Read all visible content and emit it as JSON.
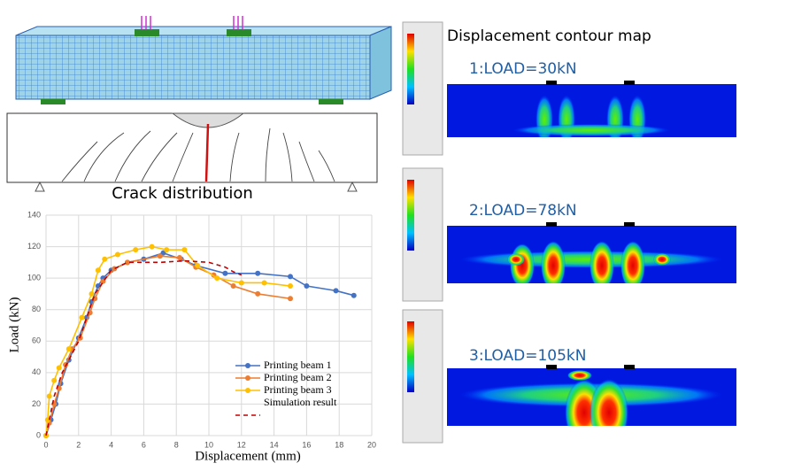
{
  "chart_data": {
    "type": "line",
    "xlabel": "Displacement (mm)",
    "ylabel": "Load (kN)",
    "xlim": [
      0,
      20
    ],
    "ylim": [
      0,
      140
    ],
    "xticks": [
      0,
      2,
      4,
      6,
      8,
      10,
      12,
      14,
      16,
      18,
      20
    ],
    "yticks": [
      0,
      20,
      40,
      60,
      80,
      100,
      120,
      140
    ],
    "grid": true,
    "series": [
      {
        "name": "Printing  beam 1",
        "color": "#4472c4",
        "marker": true,
        "x": [
          0,
          0.3,
          0.6,
          0.9,
          1.4,
          2,
          2.5,
          2.8,
          3.2,
          3.5,
          4,
          5,
          6,
          7.2,
          8.3,
          9.2,
          11,
          13,
          15,
          16,
          17.8,
          18.9
        ],
        "values": [
          0,
          10,
          20,
          33,
          48,
          62,
          75,
          85,
          95,
          100,
          105,
          110,
          112,
          116,
          112,
          108,
          103,
          103,
          101,
          95,
          92,
          89
        ]
      },
      {
        "name": "Printing beam 2",
        "color": "#ed7d31",
        "marker": true,
        "x": [
          0,
          0.2,
          0.5,
          0.8,
          1.2,
          1.6,
          2.1,
          2.7,
          3,
          3.5,
          4.2,
          5,
          7,
          8.2,
          9.2,
          10.3,
          11.5,
          13,
          15
        ],
        "values": [
          0,
          8,
          20,
          30,
          45,
          55,
          62,
          78,
          87,
          98,
          106,
          110,
          114,
          113,
          107,
          102,
          95,
          90,
          87
        ]
      },
      {
        "name": "Printing beam 3",
        "color": "#ffc000",
        "marker": true,
        "x": [
          0,
          0.1,
          0.2,
          0.5,
          0.8,
          1.4,
          2.2,
          2.8,
          3.2,
          3.6,
          4.4,
          5.5,
          6.5,
          7.4,
          8.5,
          9.3,
          10.5,
          12,
          13.4,
          15
        ],
        "values": [
          0,
          10,
          25,
          35,
          43,
          55,
          75,
          90,
          105,
          112,
          115,
          118,
          120,
          118,
          118,
          108,
          100,
          97,
          97,
          95
        ]
      },
      {
        "name": "Simulation result",
        "color": "#c00000",
        "marker": false,
        "dashed": true,
        "x": [
          0,
          0.5,
          1,
          2,
          3,
          4,
          5,
          7,
          8.5,
          10,
          11,
          11.5,
          12
        ],
        "values": [
          0,
          25,
          40,
          60,
          90,
          105,
          110,
          110,
          111,
          110,
          107,
          104,
          102
        ]
      }
    ]
  },
  "labels": {
    "crack": "Crack distribution",
    "contour": "Displacement contour map",
    "loads": [
      "1:LOAD=30kN",
      "2:LOAD=78kN",
      "3:LOAD=105kN"
    ]
  }
}
